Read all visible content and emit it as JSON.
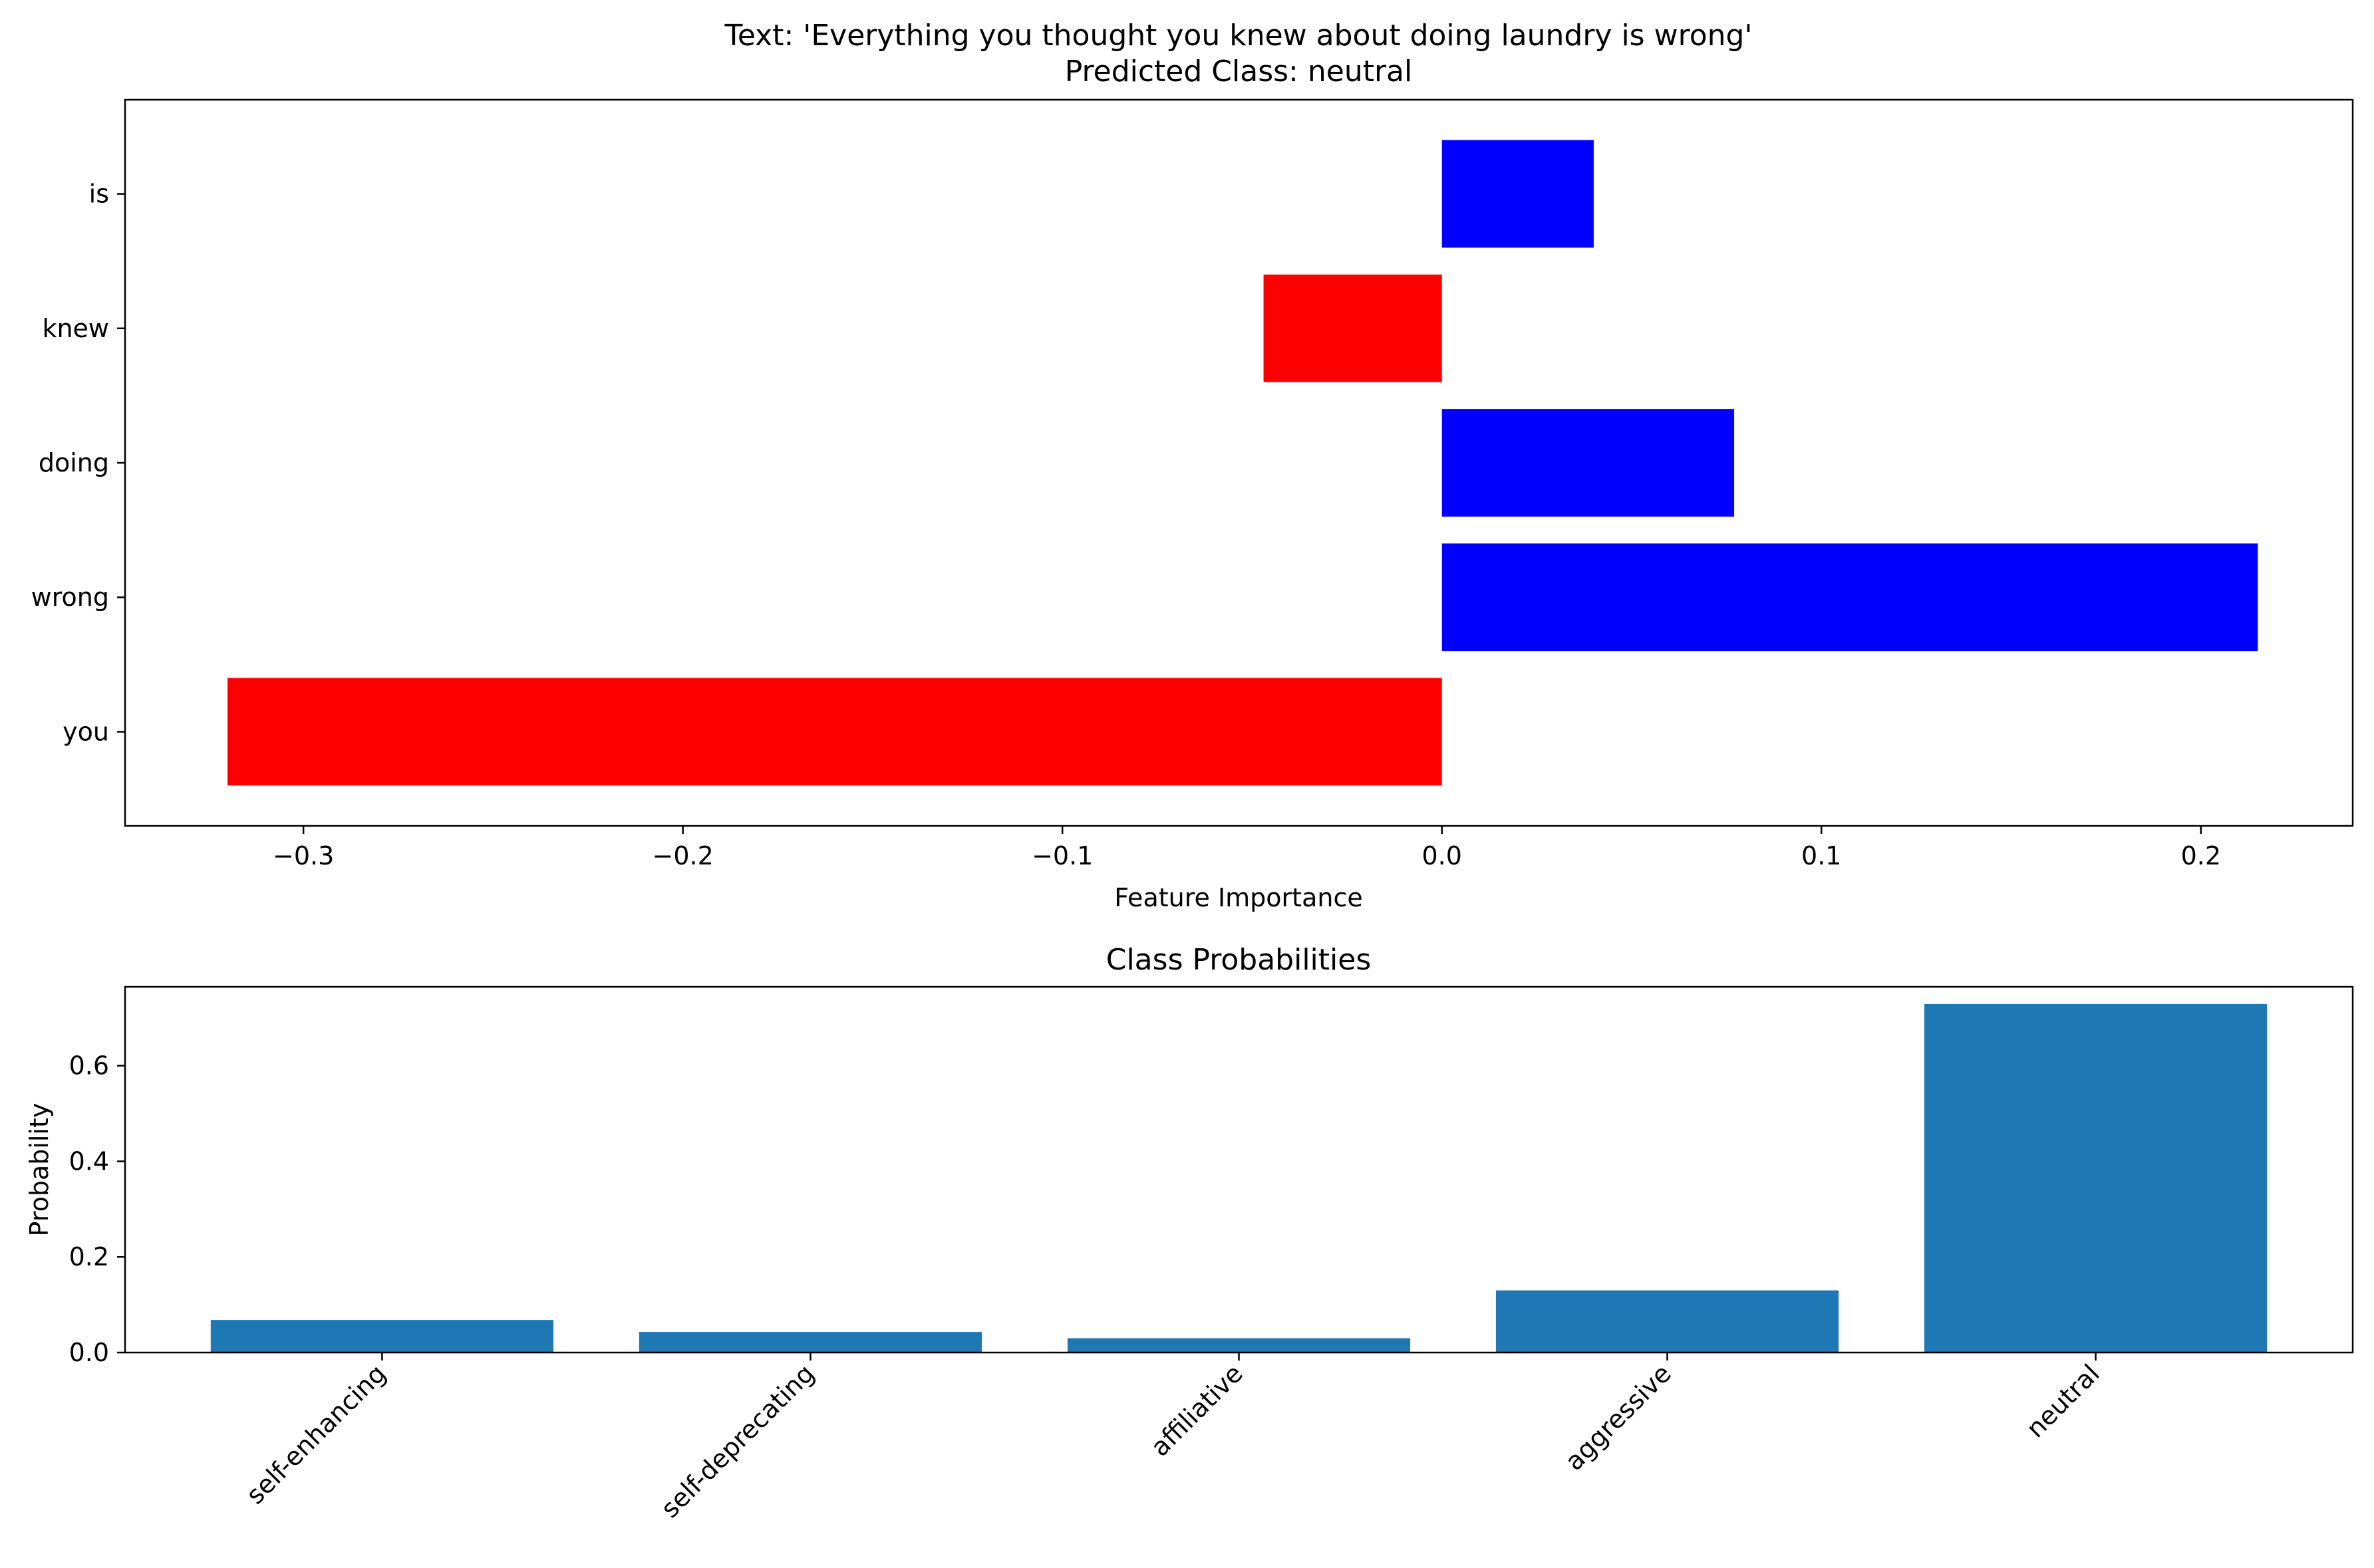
{
  "chart_data": [
    {
      "type": "bar",
      "orientation": "horizontal",
      "title_lines": [
        "Text: 'Everything you thought you knew about doing laundry is wrong'",
        "Predicted Class: neutral"
      ],
      "xlabel": "Feature Importance",
      "ylabel": "",
      "categories": [
        "is",
        "knew",
        "doing",
        "wrong",
        "you"
      ],
      "values": [
        0.04,
        -0.047,
        0.077,
        0.215,
        -0.32
      ],
      "xlim": [
        -0.347,
        0.24
      ],
      "xticks": [
        -0.3,
        -0.2,
        -0.1,
        0.0,
        0.1,
        0.2
      ],
      "xtick_labels": [
        "−0.3",
        "−0.2",
        "−0.1",
        "0.0",
        "0.1",
        "0.2"
      ],
      "positive_color": "#0000ff",
      "negative_color": "#ff0000",
      "grid": false,
      "legend": "none"
    },
    {
      "type": "bar",
      "title": "Class Probabilities",
      "xlabel": "",
      "ylabel": "Probability",
      "categories": [
        "self-enhancing",
        "self-deprecating",
        "affiliative",
        "aggressive",
        "neutral"
      ],
      "values": [
        0.068,
        0.043,
        0.03,
        0.13,
        0.729
      ],
      "ylim": [
        0,
        0.765
      ],
      "yticks": [
        0.0,
        0.2,
        0.4,
        0.6
      ],
      "ytick_labels": [
        "0.0",
        "0.2",
        "0.4",
        "0.6"
      ],
      "color": "#1f77b4",
      "xtick_rotation_deg": 45,
      "grid": false,
      "legend": "none"
    }
  ]
}
